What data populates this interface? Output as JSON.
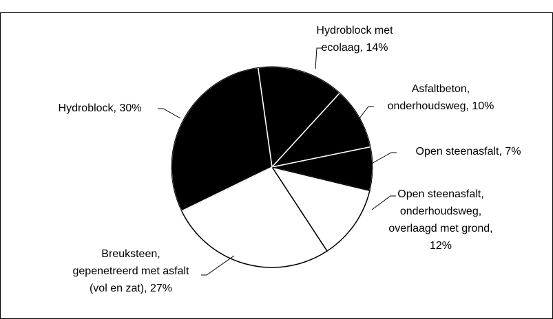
{
  "chart_data": {
    "type": "pie",
    "labels": [
      [
        "Hydroblock met",
        "ecolaag, 14%"
      ],
      [
        "Asfaltbeton,",
        "onderhoudsweg, 10%"
      ],
      [
        "Open steenasfalt, 7%"
      ],
      [
        "Open steenasfalt,",
        "onderhoudsweg,",
        "overlaagd met grond,",
        "12%"
      ],
      [
        "Breuksteen,",
        "gepenetreerd met asfalt",
        "(vol en zat), 27%"
      ],
      [
        "Hydroblock, 30%"
      ]
    ],
    "values": [
      14,
      10,
      7,
      12,
      27,
      30
    ],
    "colors": [
      "#000000",
      "#000000",
      "#000000",
      "#ffffff",
      "#ffffff",
      "#000000"
    ]
  }
}
